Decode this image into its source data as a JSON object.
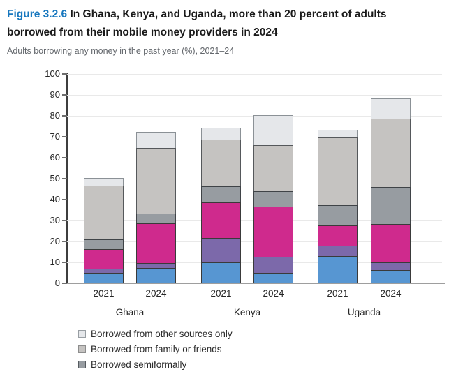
{
  "header": {
    "figure_label": "Figure 3.2.6",
    "title_line1": "In Ghana, Kenya, and Uganda, more than 20 percent of adults",
    "title_line2": "borrowed from their mobile money providers in 2024",
    "subtitle": "Adults borrowing any money in the past year (%), 2021–24"
  },
  "legend": {
    "items": [
      {
        "label": "Borrowed from other sources only",
        "color": "#e5e7ea",
        "border": "#989ea3"
      },
      {
        "label": "Borrowed from family or friends",
        "color": "#c5c3c1",
        "border": "#8d8d8d"
      },
      {
        "label": "Borrowed semiformally",
        "color": "#979ca1",
        "border": "#565b60"
      }
    ],
    "note": "legend list is cut off at the bottom edge of the image"
  },
  "chart_data": {
    "type": "bar",
    "stacked": true,
    "title": "In Ghana, Kenya, and Uganda, more than 20 percent of adults borrowed from their mobile money providers in 2024",
    "subtitle": "Adults borrowing any money in the past year (%), 2021–24",
    "categories": [
      "Ghana 2021",
      "Ghana 2024",
      "Kenya 2021",
      "Kenya 2024",
      "Uganda 2021",
      "Uganda 2024"
    ],
    "groups": [
      {
        "label": "Ghana",
        "years": [
          "2021",
          "2024"
        ]
      },
      {
        "label": "Kenya",
        "years": [
          "2021",
          "2024"
        ]
      },
      {
        "label": "Uganda",
        "years": [
          "2021",
          "2024"
        ]
      }
    ],
    "series": [
      {
        "key": "blue",
        "label": "",
        "legend_visible": false,
        "color": "#5796d2",
        "border": "#3a3a3a",
        "values": [
          5,
          7.5,
          10,
          5,
          13,
          6.5
        ]
      },
      {
        "key": "purple",
        "label": "",
        "legend_visible": false,
        "color": "#7c69aa",
        "border": "#3a3a3a",
        "values": [
          2.5,
          2.5,
          12,
          8,
          5.5,
          4
        ]
      },
      {
        "key": "magenta",
        "label": "",
        "legend_visible": false,
        "color": "#cf2a8d",
        "border": "#3a3a3a",
        "values": [
          9.5,
          19.5,
          17.5,
          24.5,
          10,
          18.5
        ]
      },
      {
        "key": "dark-gray",
        "label": "Borrowed semiformally",
        "legend_visible": true,
        "color": "#979ca1",
        "border": "#3f4347",
        "values": [
          5,
          5,
          8,
          7.5,
          10,
          18
        ]
      },
      {
        "key": "medium-gray",
        "label": "Borrowed from family or friends",
        "legend_visible": true,
        "color": "#c5c3c1",
        "border": "#55585b",
        "values": [
          26,
          31.5,
          22.5,
          22.5,
          32.5,
          33
        ]
      },
      {
        "key": "light-gray",
        "label": "Borrowed from other sources only",
        "legend_visible": true,
        "color": "#e5e7ea",
        "border": "#8b9196",
        "values": [
          4,
          8,
          6,
          14.5,
          4,
          10
        ]
      }
    ],
    "totals": [
      52,
      74,
      76,
      82,
      75,
      90
    ],
    "xlabel": "",
    "ylabel": "",
    "ylim": [
      0,
      100
    ],
    "ytick_step": 10,
    "grid": true,
    "legend_position": "bottom-left"
  }
}
